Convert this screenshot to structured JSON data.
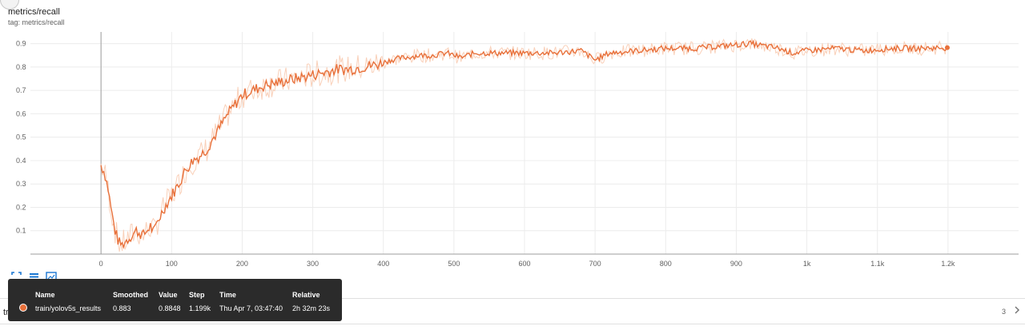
{
  "card": {
    "title": "metrics/recall",
    "tag": "tag: metrics/recall"
  },
  "chart_data": {
    "type": "line",
    "title": "metrics/recall",
    "xlabel": "",
    "ylabel": "",
    "xlim": [
      -100,
      1300
    ],
    "ylim": [
      0,
      0.95
    ],
    "grid": true,
    "x_ticks": [
      0,
      100,
      200,
      300,
      400,
      500,
      600,
      700,
      800,
      900,
      1000,
      1100,
      1200
    ],
    "x_tick_labels": [
      "0",
      "100",
      "200",
      "300",
      "400",
      "500",
      "600",
      "700",
      "800",
      "900",
      "1k",
      "1.1k",
      "1.2k"
    ],
    "y_ticks": [
      0.1,
      0.2,
      0.3,
      0.4,
      0.5,
      0.6,
      0.7,
      0.8,
      0.9
    ],
    "y_tick_labels": [
      "0.1",
      "0.2",
      "0.3",
      "0.4",
      "0.5",
      "0.6",
      "0.7",
      "0.8",
      "0.9"
    ],
    "series": [
      {
        "name": "train/yolov5s_results",
        "color": "#e8703a",
        "x": [
          0,
          5,
          10,
          15,
          20,
          25,
          30,
          40,
          50,
          60,
          70,
          75,
          80,
          90,
          100,
          110,
          120,
          130,
          140,
          150,
          160,
          170,
          180,
          190,
          200,
          215,
          230,
          245,
          260,
          275,
          290,
          305,
          320,
          335,
          350,
          370,
          390,
          410,
          430,
          450,
          470,
          490,
          510,
          530,
          560,
          600,
          640,
          680,
          700,
          720,
          760,
          800,
          840,
          880,
          920,
          960,
          980,
          1000,
          1040,
          1080,
          1120,
          1160,
          1199
        ],
        "y": [
          0.38,
          0.35,
          0.28,
          0.18,
          0.1,
          0.05,
          0.04,
          0.07,
          0.1,
          0.08,
          0.12,
          0.09,
          0.14,
          0.2,
          0.25,
          0.3,
          0.36,
          0.4,
          0.42,
          0.45,
          0.5,
          0.55,
          0.6,
          0.64,
          0.68,
          0.7,
          0.72,
          0.73,
          0.74,
          0.75,
          0.76,
          0.77,
          0.78,
          0.79,
          0.79,
          0.8,
          0.81,
          0.83,
          0.84,
          0.85,
          0.85,
          0.86,
          0.84,
          0.86,
          0.86,
          0.86,
          0.86,
          0.87,
          0.83,
          0.86,
          0.87,
          0.88,
          0.88,
          0.89,
          0.9,
          0.88,
          0.86,
          0.87,
          0.88,
          0.87,
          0.88,
          0.88,
          0.883
        ]
      }
    ]
  },
  "tooltip": {
    "headers": [
      "Name",
      "Smoothed",
      "Value",
      "Step",
      "Time",
      "Relative"
    ],
    "row": {
      "name": "train/yolov5s_results",
      "smoothed": "0.883",
      "value": "0.8848",
      "step": "1.199k",
      "time": "Thu Apr 7, 03:47:40",
      "relative": "2h 32m 23s"
    }
  },
  "toolbar": {
    "icons": [
      "fit-domain-icon",
      "data-table-icon",
      "expand-chart-icon"
    ]
  },
  "footer": {
    "left_fragment": "tra",
    "page_count": "3"
  },
  "colors": {
    "series": "#e8703a",
    "series_raw": "#f7c4a8",
    "toolbar_icon": "#1976d2",
    "tooltip_bg": "#2b2b2b"
  }
}
